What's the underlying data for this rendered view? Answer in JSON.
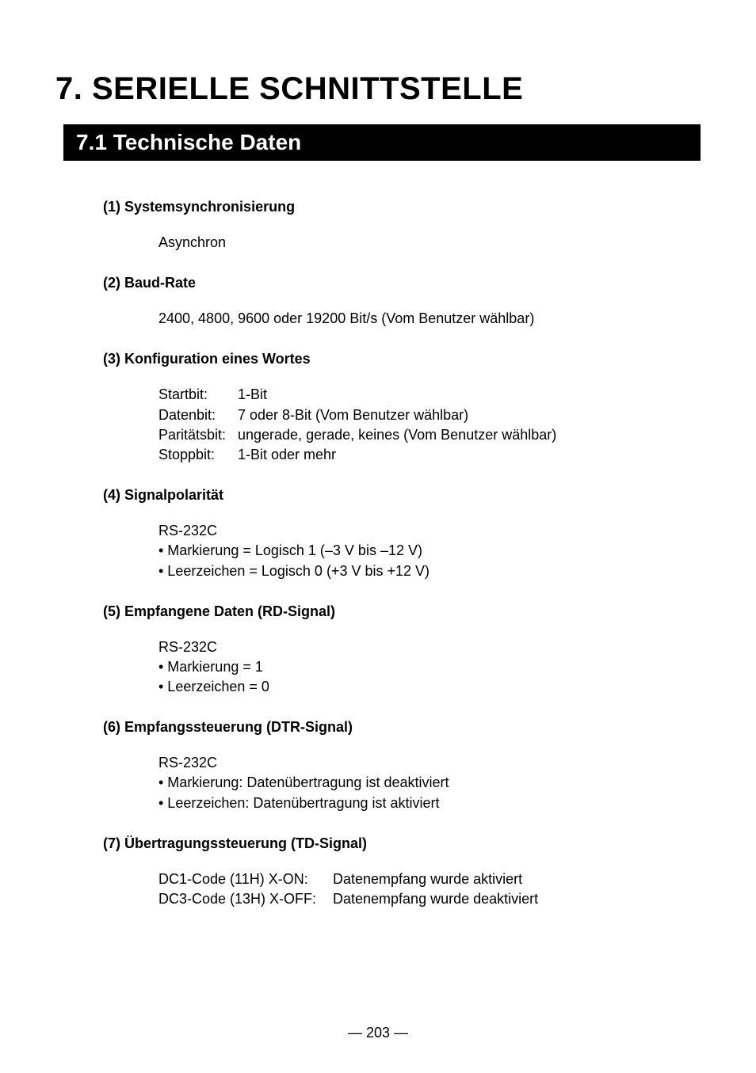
{
  "chapter_title": "7. SERIELLE SCHNITTSTELLE",
  "section_title": "7.1 Technische Daten",
  "items": [
    {
      "heading": "(1) Systemsynchronisierung",
      "lines": [
        "Asynchron"
      ]
    },
    {
      "heading": "(2) Baud-Rate",
      "lines": [
        "2400, 4800, 9600 oder 19200 Bit/s (Vom Benutzer wählbar)"
      ]
    },
    {
      "heading": "(3) Konfiguration eines Wortes",
      "defs": [
        {
          "label": "Startbit:",
          "value": "1-Bit"
        },
        {
          "label": "Datenbit:",
          "value": "7 oder 8-Bit (Vom Benutzer wählbar)"
        },
        {
          "label": "Paritätsbit:",
          "value": "ungerade, gerade, keines (Vom Benutzer wählbar)"
        },
        {
          "label": "Stoppbit:",
          "value": "1-Bit oder mehr"
        }
      ]
    },
    {
      "heading": "(4) Signalpolarität",
      "lines": [
        "RS-232C",
        "• Markierung = Logisch 1 (–3 V bis –12 V)",
        "• Leerzeichen = Logisch 0 (+3 V bis +12 V)"
      ]
    },
    {
      "heading": "(5) Empfangene Daten (RD-Signal)",
      "lines": [
        "RS-232C",
        "• Markierung = 1",
        "• Leerzeichen = 0"
      ]
    },
    {
      "heading": "(6) Empfangssteuerung (DTR-Signal)",
      "lines": [
        "RS-232C",
        "• Markierung: Datenübertragung ist deaktiviert",
        "• Leerzeichen: Datenübertragung ist aktiviert"
      ]
    },
    {
      "heading": "(7) Übertragungssteuerung (TD-Signal)",
      "td_rows": [
        {
          "label": "DC1-Code (11H) X-ON:",
          "value": "Datenempfang wurde aktiviert"
        },
        {
          "label": "DC3-Code (13H) X-OFF:",
          "value": "Datenempfang wurde deaktiviert"
        }
      ]
    }
  ],
  "page_number": "— 203 —",
  "colors": {
    "background": "#ffffff",
    "text": "#000000",
    "bar_bg": "#000000",
    "bar_text": "#ffffff"
  },
  "typography": {
    "chapter_fontsize": 40,
    "section_fontsize": 28,
    "heading_fontsize": 18,
    "body_fontsize": 18,
    "font_family": "Arial, Helvetica, sans-serif"
  }
}
